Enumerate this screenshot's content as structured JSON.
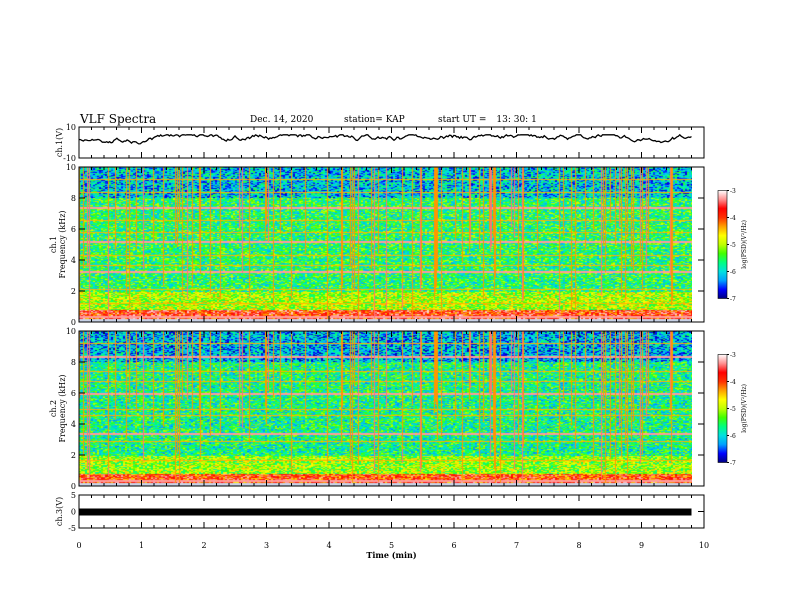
{
  "header": {
    "title": "VLF Spectra",
    "date": "Dec. 14, 2020",
    "station": "station= KAP",
    "start_label": "start UT =",
    "start_time": "13: 30: 1"
  },
  "colorbar": {
    "label": "log(PSD)(V²/Hz)",
    "ticks": [
      "-3",
      "-4",
      "-5",
      "-6",
      "-7"
    ],
    "colors": [
      "#000080",
      "#0000ff",
      "#00a0ff",
      "#00e0e0",
      "#00ff80",
      "#40ff00",
      "#c0ff00",
      "#ffff00",
      "#ffa000",
      "#ff3000",
      "#ff0000",
      "#ff9090",
      "#ffffff"
    ]
  },
  "chart_data": [
    {
      "type": "line",
      "name": "ch1",
      "ylabel": "ch.1(V)",
      "xlim": [
        0,
        10
      ],
      "ylim": [
        -10,
        10
      ],
      "y_ticks": [
        "10",
        "-10"
      ],
      "approx_range": [
        -3,
        5
      ],
      "x_end": 9.8
    },
    {
      "type": "heatmap",
      "name": "ch1-spectrogram",
      "ylabel": "ch.1\nFrequency (kHz)",
      "y_ticks": [
        "10",
        "8",
        "6",
        "4",
        "2",
        "0"
      ],
      "ylim": [
        0,
        10
      ],
      "xlim": [
        0,
        10
      ],
      "z_range": [
        -7,
        -3
      ],
      "x_end": 9.8,
      "strong_lines_khz": [
        0.4,
        1.2,
        2.1,
        3.3,
        3.7,
        4.3,
        5.2,
        5.8,
        6.6,
        7.4,
        8.4,
        9.2
      ],
      "background_log_psd": -5.6
    },
    {
      "type": "heatmap",
      "name": "ch2-spectrogram",
      "ylabel": "ch.2\nFrequency (kHz)",
      "y_ticks": [
        "10",
        "8",
        "6",
        "4",
        "2",
        "0"
      ],
      "ylim": [
        0,
        10
      ],
      "xlim": [
        0,
        10
      ],
      "z_range": [
        -7,
        -3
      ],
      "x_end": 9.8,
      "strong_lines_khz": [
        0.4,
        1.7,
        2.9,
        3.4,
        4.6,
        5.0,
        6.0,
        6.8,
        7.4,
        8.4,
        9.2
      ],
      "background_log_psd": -5.7
    },
    {
      "type": "line",
      "name": "ch3",
      "ylabel": "ch.3(V)",
      "xlim": [
        0,
        10
      ],
      "ylim": [
        -5,
        5
      ],
      "y_ticks": [
        "5",
        "0",
        "-5"
      ],
      "value": 0,
      "x_end": 9.8
    }
  ],
  "x_axis": {
    "label": "Time (min)",
    "ticks": [
      "0",
      "1",
      "2",
      "3",
      "4",
      "5",
      "6",
      "7",
      "8",
      "9",
      "10"
    ]
  }
}
